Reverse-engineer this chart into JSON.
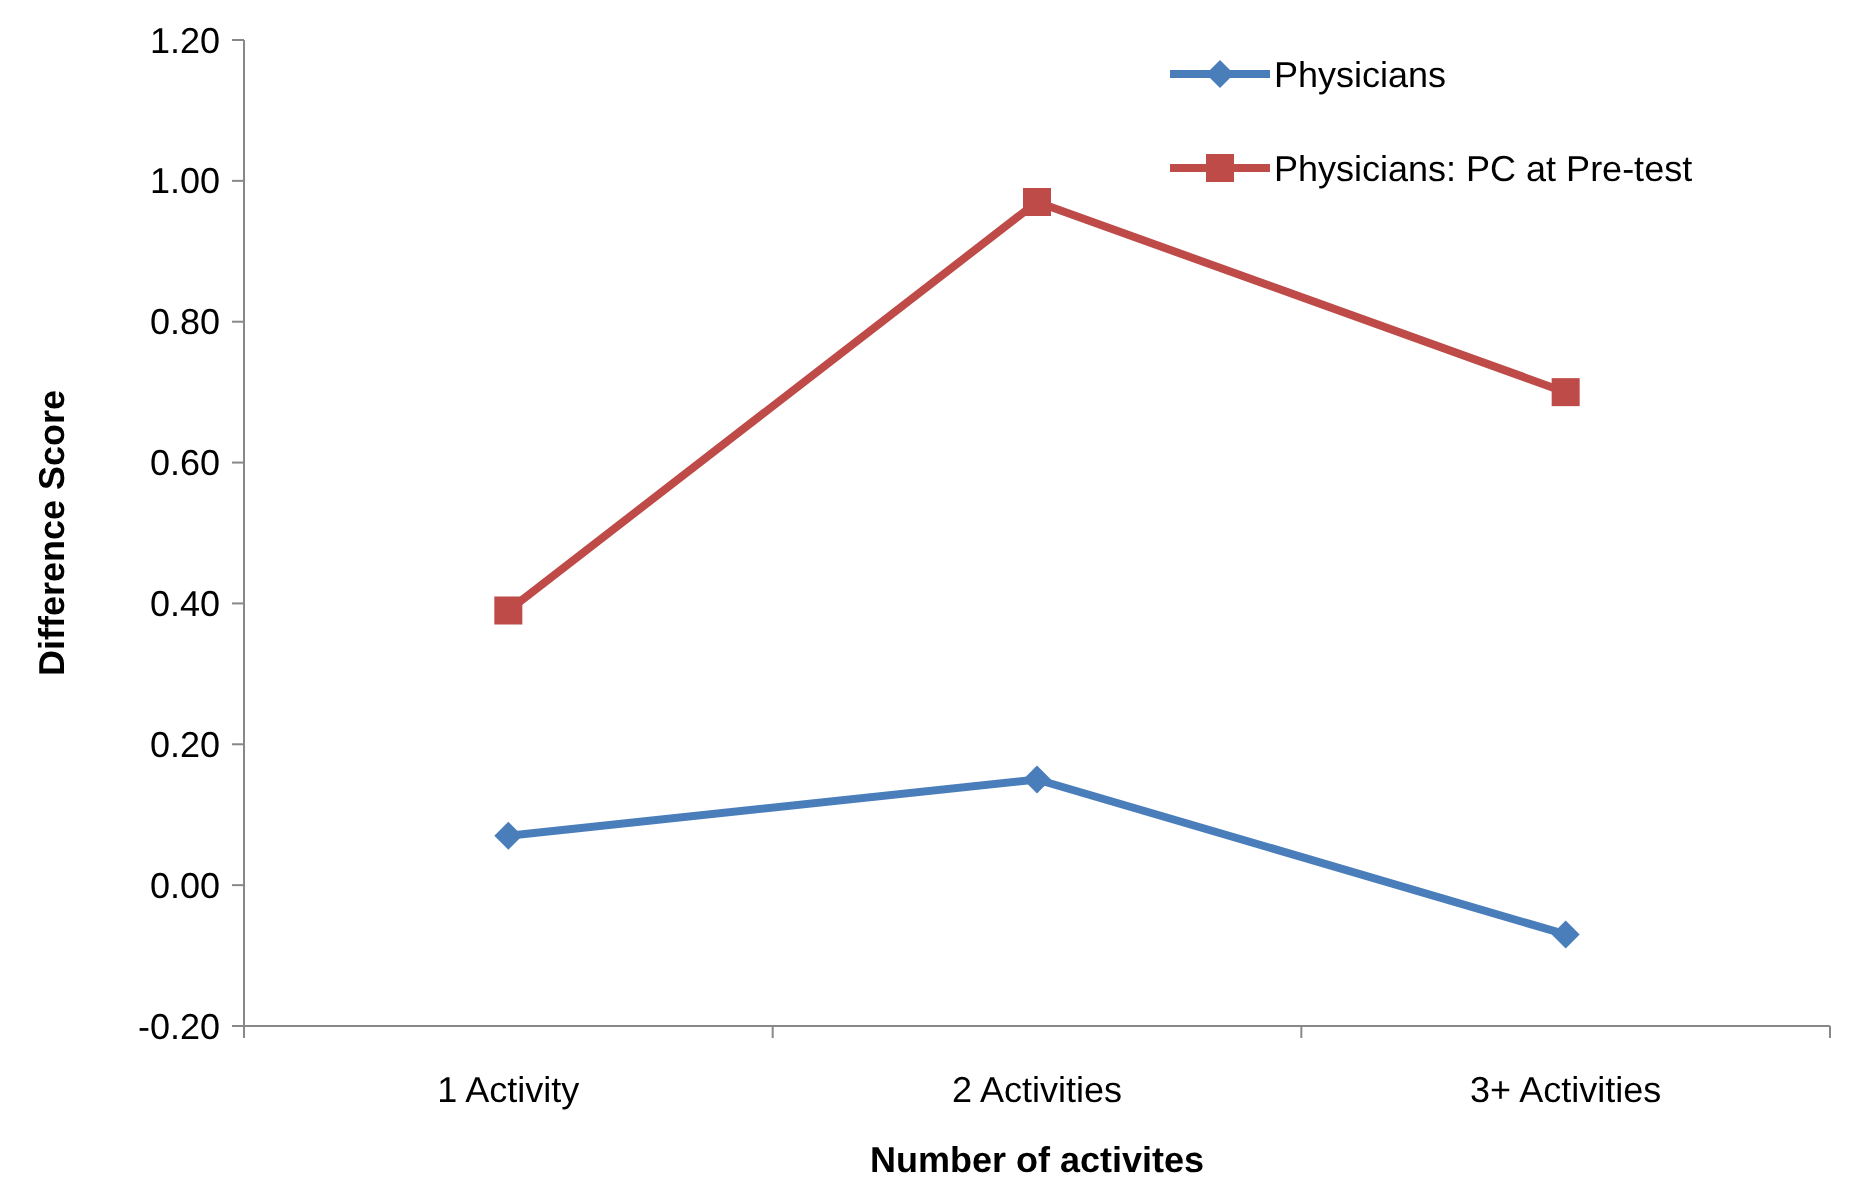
{
  "chart_data": {
    "type": "line",
    "xlabel": "Number of activites",
    "ylabel": "Difference Score",
    "categories": [
      "1 Activity",
      "2 Activities",
      "3+ Activities"
    ],
    "series": [
      {
        "name": "Physicians",
        "color": "#4a7ebb",
        "marker": "diamond",
        "values": [
          0.07,
          0.15,
          -0.07
        ]
      },
      {
        "name": "Physicians: PC at Pre-test",
        "color": "#be4b48",
        "marker": "square",
        "values": [
          0.39,
          0.97,
          0.7
        ]
      }
    ],
    "ylim": [
      -0.2,
      1.2
    ],
    "yticks": [
      {
        "value": -0.2,
        "label": "-0.20"
      },
      {
        "value": 0,
        "label": "0.00"
      },
      {
        "value": 0.2,
        "label": "0.20"
      },
      {
        "value": 0.4,
        "label": "0.40"
      },
      {
        "value": 0.6,
        "label": "0.60"
      },
      {
        "value": 0.8,
        "label": "0.80"
      },
      {
        "value": 1.0,
        "label": "1.00"
      },
      {
        "value": 1.2,
        "label": "1.20"
      }
    ],
    "grid": false,
    "legend": "top right",
    "line_style": "solid"
  }
}
